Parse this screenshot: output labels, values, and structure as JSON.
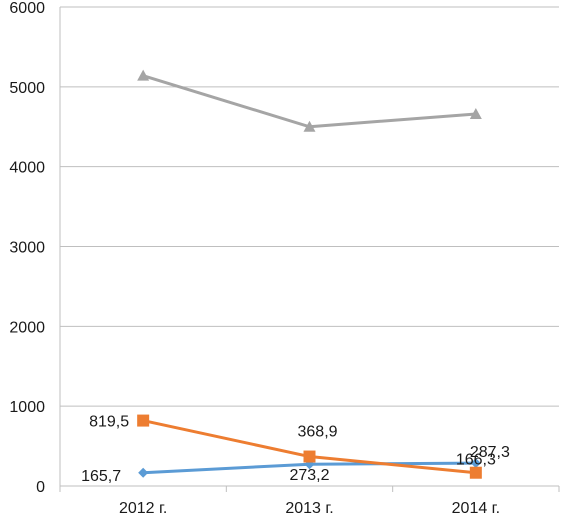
{
  "chart_data": {
    "type": "line",
    "categories": [
      "2012 г.",
      "2013 г.",
      "2014 г."
    ],
    "y_ticks": [
      "0",
      "1000",
      "2000",
      "3000",
      "4000",
      "5000",
      "6000"
    ],
    "ylim": [
      0,
      6000
    ],
    "grid": true,
    "legend": "none",
    "series": [
      {
        "values": [
          165.7,
          273.2,
          287.3
        ],
        "labels": [
          "165,7",
          "273,2",
          "287,3"
        ],
        "color": "#5B9BD5",
        "marker": "diamond"
      },
      {
        "values": [
          819.5,
          368.9,
          166.3
        ],
        "labels": [
          "819,5",
          "368,9",
          "166,3"
        ],
        "color": "#ED7D31",
        "marker": "square"
      },
      {
        "values": [
          5140,
          4500,
          4660
        ],
        "color": "#A5A5A5",
        "marker": "triangle"
      }
    ]
  }
}
